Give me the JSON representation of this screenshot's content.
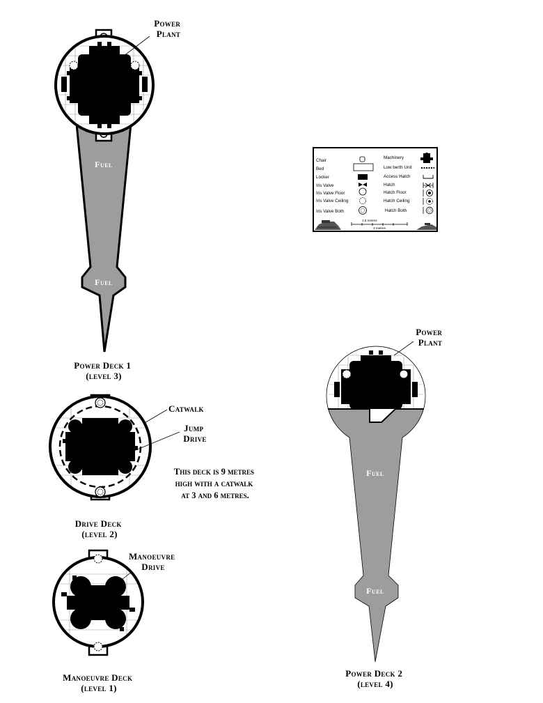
{
  "labels": {
    "power_plant_1": [
      "Power",
      "Plant"
    ],
    "fuel_1_upper": "Fuel",
    "fuel_1_lower": "Fuel",
    "power_deck_1": [
      "Power Deck 1",
      "(level 3)"
    ],
    "catwalk": "Catwalk",
    "jump_drive": [
      "Jump",
      "Drive"
    ],
    "deck_note": [
      "This deck is 9 metres",
      "high with a catwalk",
      "at 3 and 6 metres."
    ],
    "drive_deck": [
      "Drive Deck",
      "(level 2)"
    ],
    "manoeuvre_drive": [
      "Manoeuvre",
      "Drive"
    ],
    "manoeuvre_deck": [
      "Manoeuvre Deck",
      "(level 1)"
    ],
    "power_plant_2": [
      "Power",
      "Plant"
    ],
    "fuel_2_upper": "Fuel",
    "fuel_2_lower": "Fuel",
    "power_deck_2": [
      "Power Deck 2",
      "(level 4)"
    ]
  },
  "legend": {
    "left": [
      "Chair",
      "Bed",
      "Locker",
      "Iris Valve",
      "Iris Valve Floor",
      "Iris Valve Ceiling",
      "Iris Valve Both"
    ],
    "right": [
      "Machinery",
      "Low berth Unit",
      "Access Hatch",
      "Hatch",
      "Hatch Floor",
      "Hatch Ceiling",
      "Hatch Both"
    ],
    "scale_short": "1.5 metres",
    "scale_long": "3 metres"
  }
}
